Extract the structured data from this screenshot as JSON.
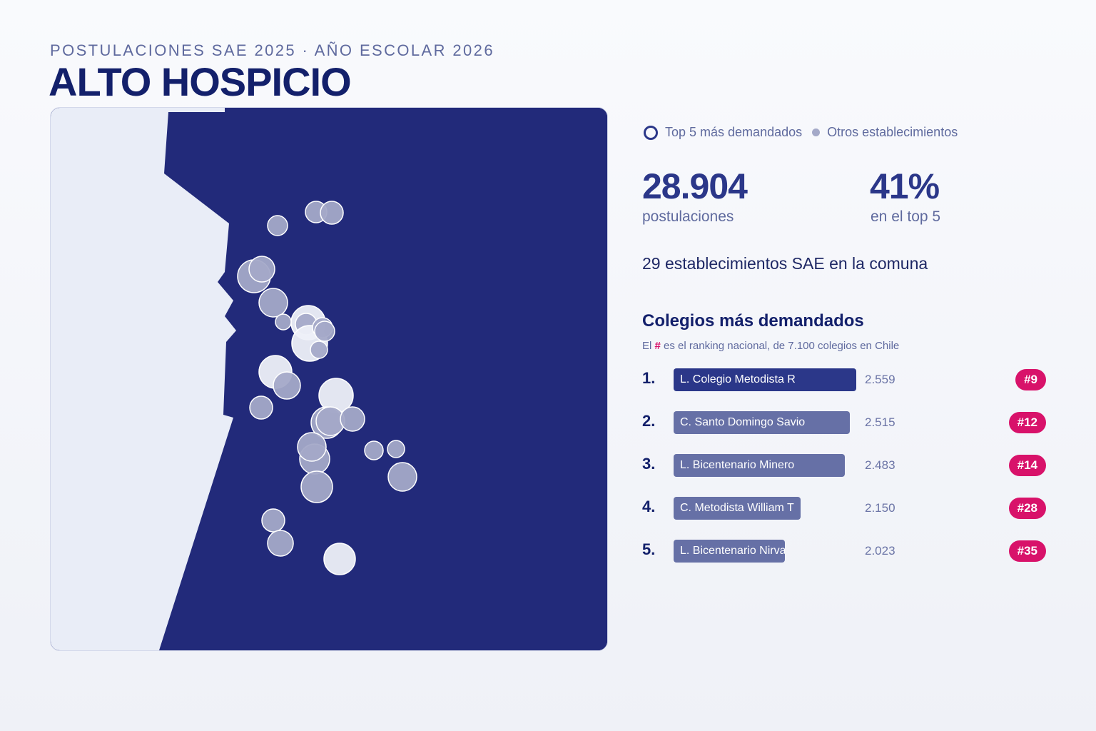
{
  "header": {
    "kicker": "POSTULACIONES SAE 2025 · AÑO ESCOLAR 2026",
    "title": "ALTO HOSPICIO"
  },
  "legend": {
    "top5": "Top 5 más demandados",
    "others": "Otros establecimientos"
  },
  "stats": {
    "applications_value": "28.904",
    "applications_label": "postulaciones",
    "top5_share_value": "41%",
    "top5_share_label": "en el top 5"
  },
  "schools_note": "29 establecimientos SAE en la comuna",
  "ranking": {
    "title": "Colegios más demandados",
    "note_prefix": "El",
    "note_hash": "#",
    "note_suffix": "es el ranking nacional, de 7.100 colegios en Chile",
    "items": [
      {
        "rank": "1.",
        "name": "L. Colegio Metodista R",
        "value": "2.559",
        "national": "#9",
        "applications": 2559
      },
      {
        "rank": "2.",
        "name": "C. Santo Domingo Savio",
        "value": "2.515",
        "national": "#12",
        "applications": 2515
      },
      {
        "rank": "3.",
        "name": "L. Bicentenario Minero",
        "value": "2.483",
        "national": "#14",
        "applications": 2483
      },
      {
        "rank": "4.",
        "name": "C. Metodista William T",
        "value": "2.150",
        "national": "#28",
        "applications": 2150
      },
      {
        "rank": "5.",
        "name": "L. Bicentenario Nirvan",
        "value": "2.023",
        "national": "#35",
        "applications": 2023
      }
    ]
  },
  "colors": {
    "navy": "#222a7a",
    "bar_top": "#2b3789",
    "bar_rest": "#6670a6",
    "accent": "#d8126a",
    "land": "#e9edf7",
    "marker": "#a4a9c8"
  }
}
